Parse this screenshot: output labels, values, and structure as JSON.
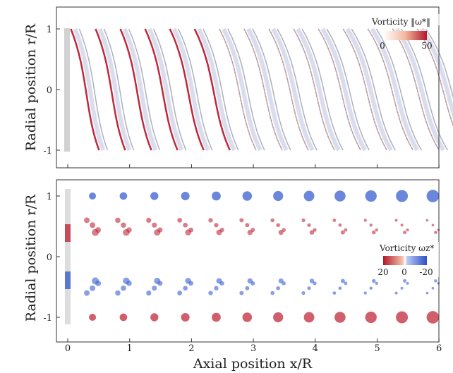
{
  "chart_data": [
    {
      "type": "heatmap",
      "title": "",
      "xlabel": "Axial position x/R",
      "ylabel": "Radial position r/R",
      "xlim": [
        -0.2,
        6
      ],
      "ylim": [
        -1.3,
        1.3
      ],
      "xticks": [
        "0",
        "1",
        "2",
        "3",
        "4",
        "5",
        "6"
      ],
      "yticks": [
        "1",
        "0",
        "-1"
      ],
      "colorbar": {
        "label": "Vorticity ‖ω*‖",
        "min_label": "0",
        "max_label": "50",
        "colors": [
          "#ffffff",
          "#f4b89e",
          "#b2182b"
        ]
      },
      "rendering": "volume rendering of vorticity magnitude in rotor wake"
    },
    {
      "type": "heatmap",
      "title": "",
      "xlabel": "Axial position x/R",
      "ylabel": "Radial position r/R",
      "xlim": [
        -0.2,
        6
      ],
      "ylim": [
        -1.3,
        1.3
      ],
      "xticks": [
        "0",
        "1",
        "2",
        "3",
        "4",
        "5",
        "6"
      ],
      "yticks": [
        "1",
        "0",
        "-1"
      ],
      "colorbar": {
        "label": "Vorticity ωz*",
        "labels": [
          "20",
          "0",
          "-20"
        ],
        "colors": [
          "#b2182b",
          "#ffffff",
          "#2c4fc7"
        ]
      },
      "rendering": "slice of axial vorticity showing tip and root vortices"
    }
  ],
  "colors": {
    "red": "#c0283a",
    "blue": "#3a5fd0",
    "grey": "#8a8f9c"
  }
}
